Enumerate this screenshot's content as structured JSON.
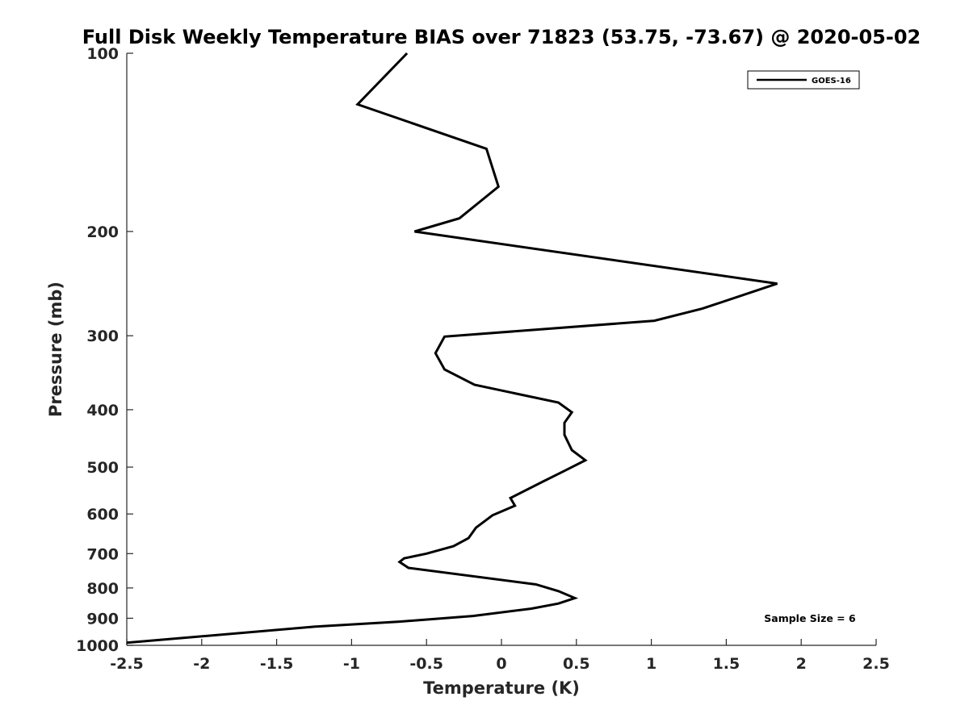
{
  "chart_data": {
    "type": "line",
    "title": "Full Disk Weekly Temperature BIAS over 71823 (53.75, -73.67) @ 2020-05-02",
    "xlabel": "Temperature (K)",
    "ylabel": "Pressure (mb)",
    "xlim": [
      -2.5,
      2.5
    ],
    "ylim": [
      100,
      1000
    ],
    "y_scale": "log",
    "y_reversed": true,
    "x_ticks": [
      -2.5,
      -2,
      -1.5,
      -1,
      -0.5,
      0,
      0.5,
      1,
      1.5,
      2,
      2.5
    ],
    "x_tick_labels": [
      "-2.5",
      "-2",
      "-1.5",
      "-1",
      "-0.5",
      "0",
      "0.5",
      "1",
      "1.5",
      "2",
      "2.5"
    ],
    "y_ticks": [
      100,
      200,
      300,
      400,
      500,
      600,
      700,
      800,
      900,
      1000
    ],
    "y_tick_labels": [
      "100",
      "200",
      "300",
      "400",
      "500",
      "600",
      "700",
      "800",
      "900",
      "1000"
    ],
    "grid": false,
    "legend_position": "top-right",
    "annotation": "Sample Size = 6",
    "series": [
      {
        "name": "GOES-16",
        "color": "#000000",
        "x": [
          -0.63,
          -0.96,
          -0.1,
          -0.02,
          -0.28,
          -0.58,
          1.84,
          1.34,
          1.02,
          -0.38,
          -0.44,
          -0.38,
          -0.18,
          0.38,
          0.47,
          0.42,
          0.42,
          0.47,
          0.56,
          0.43,
          0.27,
          0.06,
          0.09,
          -0.06,
          -0.17,
          -0.22,
          -0.32,
          -0.5,
          -0.65,
          -0.68,
          -0.62,
          0.23,
          0.38,
          0.49,
          0.38,
          0.2,
          -0.19,
          -0.68,
          -1.25,
          -2.5
        ],
        "y": [
          100,
          122,
          145,
          168,
          190,
          200,
          245,
          270,
          283,
          301,
          321,
          342,
          363,
          389,
          404,
          421,
          441,
          468,
          487,
          506,
          530,
          564,
          581,
          603,
          633,
          659,
          680,
          700,
          713,
          723,
          740,
          789,
          810,
          832,
          850,
          867,
          892,
          912,
          930,
          990
        ]
      }
    ]
  }
}
